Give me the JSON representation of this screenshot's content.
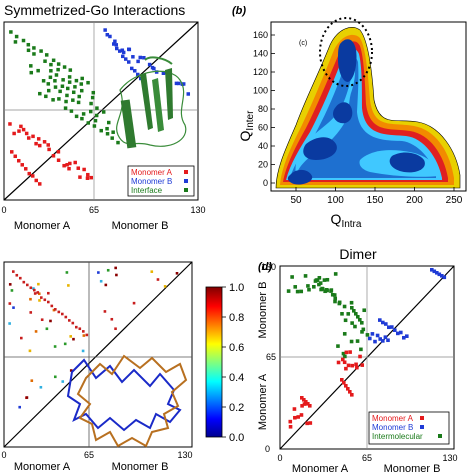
{
  "figure": {
    "panel_a": {
      "title": "Symmetrized-Go Interactions",
      "xlabel_left": "Monomer A",
      "xlabel_right": "Monomer B",
      "ticks": [
        "0",
        "65",
        "130"
      ],
      "legend": [
        {
          "label": "Monomer A",
          "color": "#e41a1c"
        },
        {
          "label": "Monomer B",
          "color": "#1f3bd6"
        },
        {
          "label": "Interface",
          "color": "#1a7a1a"
        }
      ],
      "colors": {
        "a": "#e41a1c",
        "b": "#1f3bd6",
        "interface": "#1a7a1a",
        "ribbon": "#3a8c3a"
      }
    },
    "panel_b": {
      "letter": "(b)",
      "inset_label": "(c)",
      "xlabel_main": "Q",
      "xlabel_sub": "Intra",
      "ylabel_main": "Q",
      "ylabel_sub": "Inter",
      "xticks": [
        "50",
        "100",
        "150",
        "200",
        "250"
      ],
      "yticks": [
        "0",
        "20",
        "40",
        "60",
        "80",
        "100",
        "120",
        "140",
        "160"
      ]
    },
    "panel_c": {
      "xlabel_left": "Monomer A",
      "xlabel_right": "Monomer B",
      "xticks": [
        "0",
        "65",
        "130"
      ],
      "colorbar_ticks": [
        "0.0",
        "0.2",
        "0.4",
        "0.6",
        "0.8",
        "1.0"
      ]
    },
    "panel_d": {
      "letter": "(d)",
      "title": "Dimer",
      "xlabel_left": "Monomer A",
      "xlabel_right": "Monomer B",
      "ylabel_bottom": "Monomer A",
      "ylabel_top": "Monomer B",
      "xticks": [
        "0",
        "65",
        "130"
      ],
      "yticks": [
        "0",
        "65",
        "130"
      ],
      "legend": [
        {
          "label": "Monomer A",
          "color": "#e41a1c"
        },
        {
          "label": "Monomer B",
          "color": "#1f3bd6"
        },
        {
          "label": "Intermolecular",
          "color": "#1a7a1a"
        }
      ]
    }
  }
}
